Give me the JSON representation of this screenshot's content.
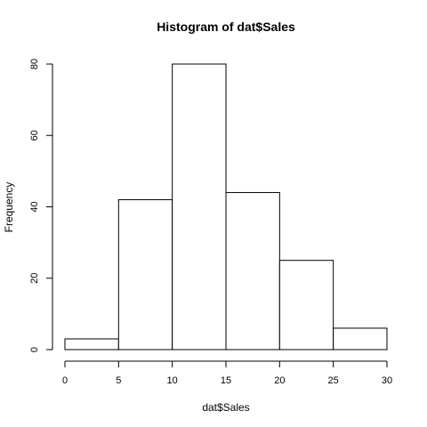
{
  "chart_data": {
    "type": "bar",
    "title": "Histogram of dat$Sales",
    "xlabel": "dat$Sales",
    "ylabel": "Frequency",
    "bins": [
      {
        "from": 0,
        "to": 5,
        "value": 3
      },
      {
        "from": 5,
        "to": 10,
        "value": 42
      },
      {
        "from": 10,
        "to": 15,
        "value": 80
      },
      {
        "from": 15,
        "to": 20,
        "value": 44
      },
      {
        "from": 20,
        "to": 25,
        "value": 25
      },
      {
        "from": 25,
        "to": 30,
        "value": 6
      }
    ],
    "xlim": [
      0,
      30
    ],
    "ylim": [
      0,
      80
    ],
    "xticks": [
      0,
      5,
      10,
      15,
      20,
      25,
      30
    ],
    "yticks": [
      0,
      20,
      40,
      60,
      80
    ],
    "grid": false,
    "colors": {
      "bar_fill": "#ffffff",
      "bar_stroke": "#000000"
    }
  }
}
